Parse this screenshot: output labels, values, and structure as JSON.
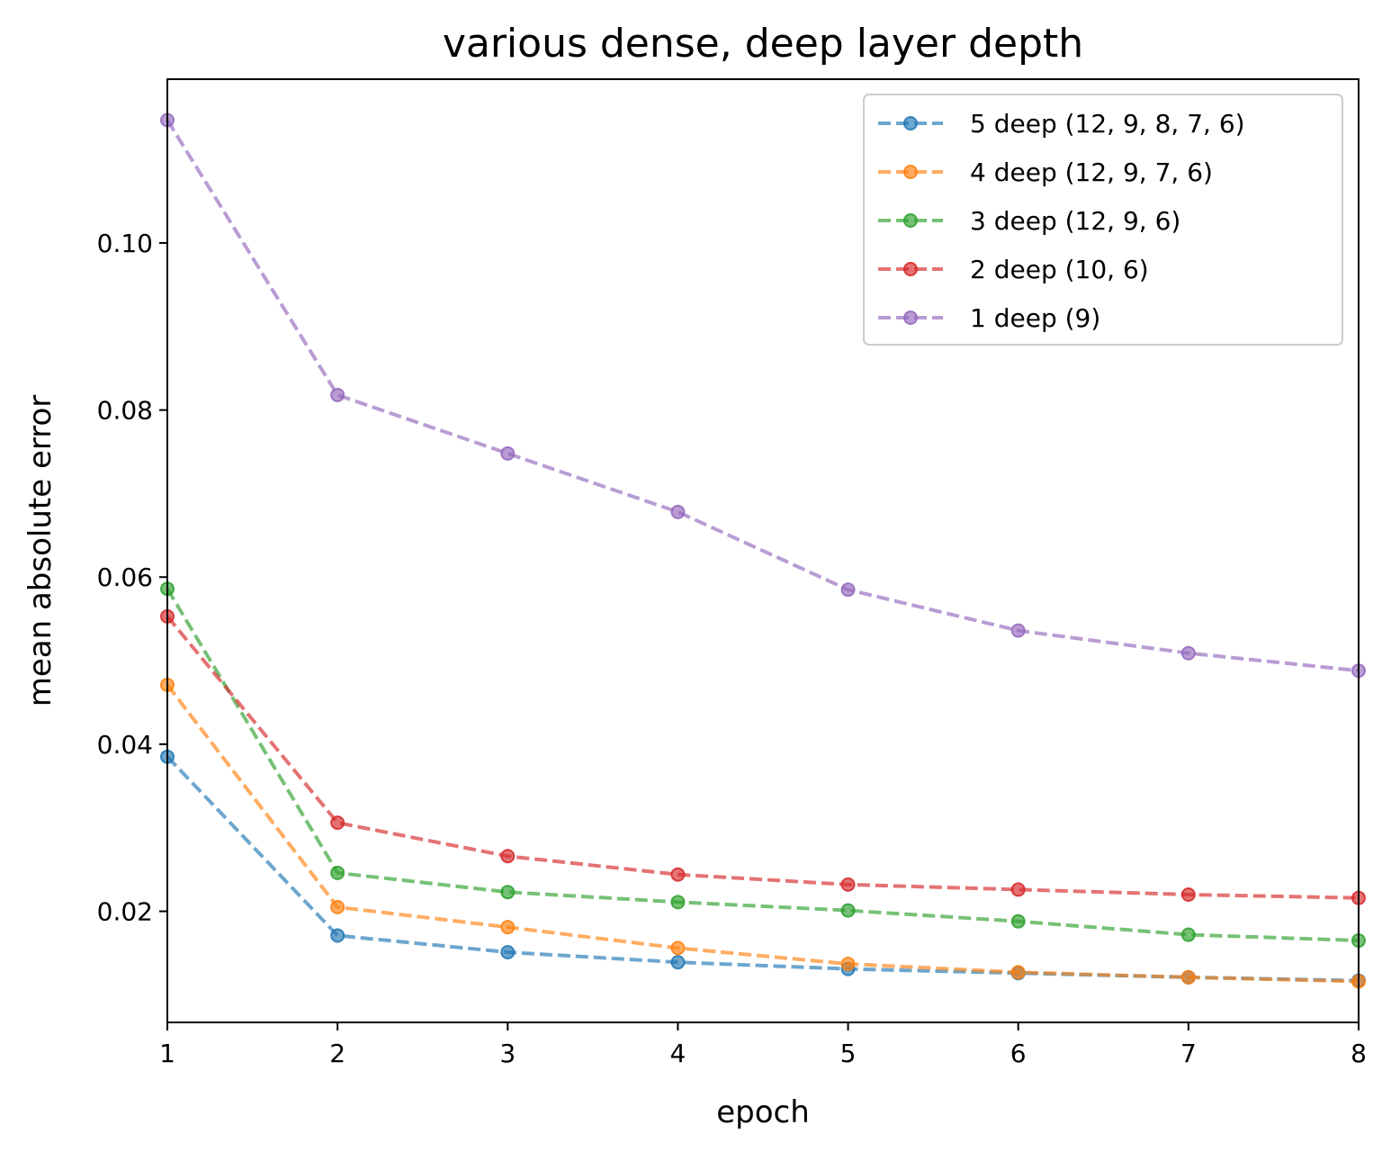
{
  "chart_data": {
    "type": "line",
    "title": "various dense, deep layer depth",
    "xlabel": "epoch",
    "ylabel": "mean absolute error",
    "x": [
      1,
      2,
      3,
      4,
      5,
      6,
      7,
      8
    ],
    "xlim": [
      1,
      8
    ],
    "ylim": [
      0.0067,
      0.1196
    ],
    "xticks": [
      "1",
      "2",
      "3",
      "4",
      "5",
      "6",
      "7",
      "8"
    ],
    "yticks": [
      "0.02",
      "0.04",
      "0.06",
      "0.08",
      "0.10"
    ],
    "grid": false,
    "legend_position": "top-right",
    "series": [
      {
        "name": "5 deep (12, 9, 8, 7, 6)",
        "color": "#1f77b4",
        "line_style": "dashed",
        "marker": "circle",
        "values": [
          0.0385,
          0.0171,
          0.0151,
          0.0139,
          0.0131,
          0.0126,
          0.0121,
          0.0117
        ]
      },
      {
        "name": "4 deep (12, 9, 7, 6)",
        "color": "#ff7f0e",
        "line_style": "dashed",
        "marker": "circle",
        "values": [
          0.0471,
          0.0205,
          0.0181,
          0.0156,
          0.0137,
          0.0127,
          0.0121,
          0.0116
        ]
      },
      {
        "name": "3 deep (12, 9, 6)",
        "color": "#2ca02c",
        "line_style": "dashed",
        "marker": "circle",
        "values": [
          0.0586,
          0.0246,
          0.0223,
          0.0211,
          0.0201,
          0.0188,
          0.0172,
          0.0165
        ]
      },
      {
        "name": "2 deep (10, 6)",
        "color": "#d62728",
        "line_style": "dashed",
        "marker": "circle",
        "values": [
          0.0553,
          0.0306,
          0.0266,
          0.0244,
          0.0232,
          0.0226,
          0.022,
          0.0216
        ]
      },
      {
        "name": "1 deep (9)",
        "color": "#9467bd",
        "line_style": "dashed",
        "marker": "circle",
        "values": [
          0.1147,
          0.0818,
          0.0748,
          0.0678,
          0.0585,
          0.0536,
          0.0509,
          0.0488
        ]
      }
    ]
  }
}
